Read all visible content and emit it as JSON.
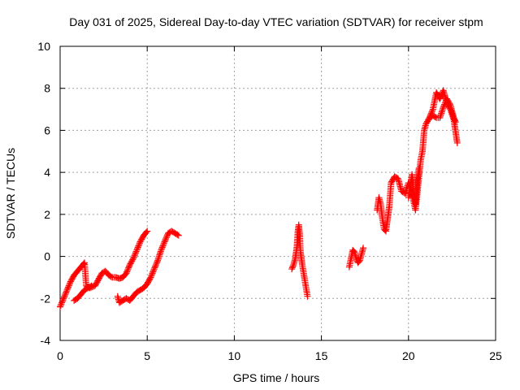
{
  "chart_data": {
    "type": "scatter",
    "title": "Day 031 of 2025, Sidereal Day-to-day VTEC variation (SDTVAR) for receiver stpm",
    "xlabel": "GPS time / hours",
    "ylabel": "SDTVAR / TECUs",
    "xlim": [
      0,
      25
    ],
    "ylim": [
      -4,
      10
    ],
    "xticks": [
      0,
      5,
      10,
      15,
      20,
      25
    ],
    "xtick_labels": [
      "0",
      "5",
      "10",
      "15",
      "20",
      "25"
    ],
    "yticks": [
      -4,
      -2,
      0,
      2,
      4,
      6,
      8,
      10
    ],
    "ytick_labels": [
      "-4",
      "-2",
      "0",
      "2",
      "4",
      "6",
      "8",
      "10"
    ],
    "grid": true,
    "marker": "plus",
    "color": "#ff0000",
    "series": [
      {
        "name": "SDTVAR",
        "segments": [
          {
            "x": [
              0.0,
              0.2,
              0.4,
              0.6,
              0.8,
              1.0,
              1.2,
              1.4,
              1.5,
              1.7,
              2.0,
              2.2,
              2.4,
              2.6,
              2.8,
              3.0,
              3.2,
              3.4,
              3.6,
              3.8,
              4.0,
              4.2,
              4.4,
              4.6,
              4.8,
              5.0
            ],
            "y": [
              -2.4,
              -2.0,
              -1.6,
              -1.2,
              -0.9,
              -0.7,
              -0.5,
              -0.3,
              -1.4,
              -1.5,
              -1.4,
              -1.1,
              -0.8,
              -0.7,
              -0.9,
              -1.0,
              -1.0,
              -1.05,
              -1.0,
              -0.8,
              -0.4,
              -0.1,
              0.3,
              0.7,
              1.0,
              1.2
            ]
          },
          {
            "x": [
              0.8,
              1.0,
              1.2,
              1.4,
              1.6,
              1.8
            ],
            "y": [
              -2.1,
              -2.0,
              -1.8,
              -1.6,
              -1.5,
              -1.4
            ]
          },
          {
            "x": [
              3.3,
              3.4,
              3.6,
              3.8,
              4.0,
              4.2,
              4.4,
              4.6,
              4.8,
              5.0,
              5.2,
              5.4,
              5.6,
              5.8,
              6.0,
              6.2,
              6.4,
              6.6,
              6.8
            ],
            "y": [
              -1.9,
              -2.2,
              -2.1,
              -2.0,
              -2.1,
              -1.9,
              -1.7,
              -1.6,
              -1.5,
              -1.3,
              -1.0,
              -0.6,
              -0.2,
              0.3,
              0.7,
              1.1,
              1.2,
              1.1,
              1.0
            ]
          },
          {
            "x": [
              13.3,
              13.4,
              13.5,
              13.6,
              13.65,
              13.7,
              13.75,
              13.8,
              13.9,
              14.0,
              14.1,
              14.2
            ],
            "y": [
              -0.6,
              -0.4,
              -0.1,
              0.5,
              1.2,
              1.5,
              1.1,
              0.2,
              -0.4,
              -0.9,
              -1.4,
              -1.9
            ]
          },
          {
            "x": [
              16.6,
              16.7,
              16.8,
              16.9,
              17.0,
              17.1,
              17.2,
              17.3,
              17.4
            ],
            "y": [
              -0.5,
              -0.1,
              0.3,
              0.2,
              -0.1,
              -0.3,
              -0.2,
              0.1,
              0.4
            ]
          },
          {
            "x": [
              18.2,
              18.3,
              18.4,
              18.5,
              18.6,
              18.7,
              18.8,
              18.9,
              19.0,
              19.2,
              19.4,
              19.6,
              19.8,
              20.0,
              20.2,
              20.4,
              20.6,
              20.7,
              20.8,
              20.9,
              21.0,
              21.2,
              21.4,
              21.6,
              21.8,
              22.0,
              22.2,
              22.4,
              22.6,
              22.8
            ],
            "y": [
              2.2,
              2.8,
              2.5,
              1.8,
              1.3,
              1.2,
              1.8,
              2.4,
              3.5,
              3.8,
              3.7,
              3.1,
              3.0,
              3.5,
              3.0,
              2.2,
              3.8,
              4.6,
              5.0,
              6.0,
              6.3,
              6.6,
              7.0,
              7.8,
              7.5,
              7.9,
              7.3,
              7.0,
              6.5,
              5.4
            ]
          },
          {
            "x": [
              20.0,
              20.1,
              20.2,
              20.3,
              20.4,
              20.5,
              20.6
            ],
            "y": [
              2.8,
              3.3,
              3.9,
              3.1,
              2.5,
              3.6,
              4.2
            ]
          },
          {
            "x": [
              21.2,
              21.4,
              21.6,
              21.8,
              22.0,
              22.2,
              22.4,
              22.6,
              22.7
            ],
            "y": [
              6.6,
              6.7,
              6.6,
              6.6,
              7.1,
              7.5,
              7.2,
              6.6,
              6.4
            ]
          }
        ]
      }
    ]
  }
}
